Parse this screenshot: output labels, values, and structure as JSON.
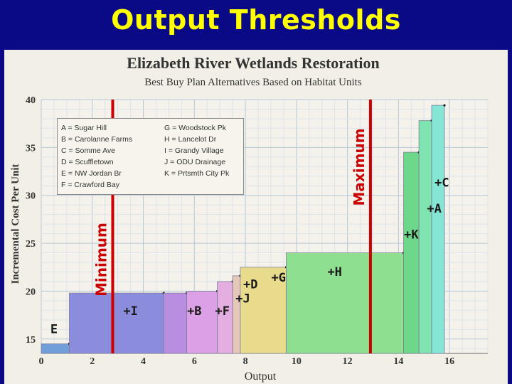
{
  "slide": {
    "title": "Output Thresholds"
  },
  "chart_data": {
    "type": "bar",
    "title": "Elizabeth River Wetlands Restoration",
    "subtitle": "Best Buy Plan Alternatives Based on Habitat Units",
    "xlabel": "Output",
    "ylabel": "Incremental Cost Per Unit",
    "xlim": [
      0,
      17.5
    ],
    "ylim": [
      13.5,
      40
    ],
    "x_ticks": [
      "0",
      "2",
      "4",
      "6",
      "8",
      "10",
      "12",
      "14",
      "16"
    ],
    "y_ticks": [
      "15",
      "20",
      "25",
      "30",
      "35",
      "40"
    ],
    "grid": true,
    "steps": [
      {
        "label": "E",
        "x0": 0.0,
        "x1": 1.1,
        "y": 14.5,
        "color": "#6f9ed8"
      },
      {
        "label": "+I",
        "x0": 1.1,
        "x1": 4.8,
        "y": 19.8,
        "color": "#8c8cdc"
      },
      {
        "label": "+B",
        "x0": 4.8,
        "x1": 5.7,
        "y": 19.8,
        "color": "#b98de0"
      },
      {
        "label": "+F",
        "x0": 5.7,
        "x1": 6.9,
        "y": 20.0,
        "color": "#dca0e6"
      },
      {
        "label": "+J",
        "x0": 6.9,
        "x1": 7.5,
        "y": 21.0,
        "color": "#e4aee0"
      },
      {
        "label": "+D",
        "x0": 7.5,
        "x1": 7.8,
        "y": 21.6,
        "color": "#e6c8b8"
      },
      {
        "label": "+G",
        "x0": 7.8,
        "x1": 9.6,
        "y": 22.5,
        "color": "#e8dc8c"
      },
      {
        "label": "+H",
        "x0": 9.6,
        "x1": 14.2,
        "y": 24.0,
        "color": "#8ee090"
      },
      {
        "label": "+K",
        "x0": 14.2,
        "x1": 14.8,
        "y": 34.5,
        "color": "#6ed88a"
      },
      {
        "label": "+A",
        "x0": 14.8,
        "x1": 15.3,
        "y": 37.8,
        "color": "#7ee4b0"
      },
      {
        "label": "+C",
        "x0": 15.3,
        "x1": 15.8,
        "y": 39.4,
        "color": "#86e6d6"
      }
    ],
    "thresholds": [
      {
        "label": "Minimum",
        "x": 2.8,
        "color": "#cc0000"
      },
      {
        "label": "Maximum",
        "x": 12.9,
        "color": "#cc0000"
      }
    ]
  },
  "legend": {
    "col1": [
      "A = Sugar Hill",
      "B = Carolanne Farms",
      "C = Somme Ave",
      "D = Scuffletown",
      "E = NW Jordan Br",
      "F = Crawford Bay"
    ],
    "col2": [
      "G = Woodstock Pk",
      "H = Lancelot Dr",
      "I = Grandy Village",
      "J = ODU Drainage",
      "K = Prtsmth City Pk"
    ]
  }
}
